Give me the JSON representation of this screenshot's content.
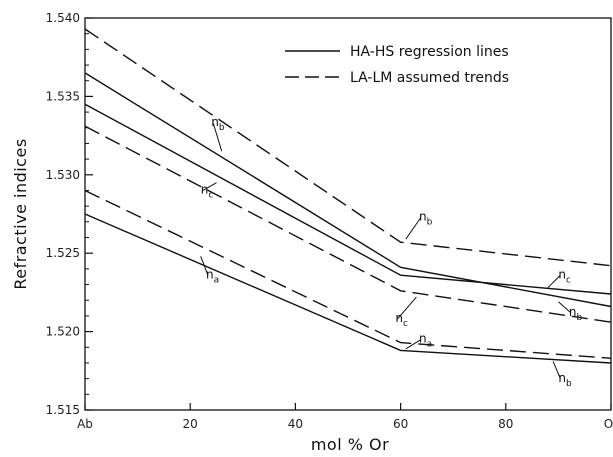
{
  "chart_data": {
    "type": "line",
    "title": "",
    "xlabel": "mol % Or",
    "ylabel": "Refractive indices",
    "xlim": [
      0,
      100
    ],
    "ylim": [
      1.515,
      1.54
    ],
    "x_ticks": [
      {
        "value": 0,
        "label": "Ab"
      },
      {
        "value": 20,
        "label": "20"
      },
      {
        "value": 40,
        "label": "40"
      },
      {
        "value": 60,
        "label": "60"
      },
      {
        "value": 80,
        "label": "80"
      },
      {
        "value": 100,
        "label": "Or"
      }
    ],
    "y_ticks": [
      {
        "value": 1.515,
        "label": "1.515"
      },
      {
        "value": 1.52,
        "label": "1.520"
      },
      {
        "value": 1.525,
        "label": "1.525"
      },
      {
        "value": 1.53,
        "label": "1.530"
      },
      {
        "value": 1.535,
        "label": "1.535"
      },
      {
        "value": 1.54,
        "label": "1.540"
      }
    ],
    "legend": {
      "position": "top-right",
      "entries": [
        {
          "label": "HA-HS regression lines",
          "style": "solid"
        },
        {
          "label": "LA-LM assumed trends",
          "style": "dashed"
        }
      ]
    },
    "series": [
      {
        "style": "solid",
        "points": [
          [
            0,
            1.5365
          ],
          [
            60,
            1.5241
          ],
          [
            100,
            1.5216
          ]
        ]
      },
      {
        "style": "solid",
        "points": [
          [
            0,
            1.5345
          ],
          [
            60,
            1.5236
          ],
          [
            100,
            1.5224
          ]
        ]
      },
      {
        "style": "solid",
        "points": [
          [
            0,
            1.5275
          ],
          [
            60,
            1.5188
          ],
          [
            100,
            1.518
          ]
        ]
      },
      {
        "style": "dashed",
        "points": [
          [
            0,
            1.5393
          ],
          [
            60,
            1.5257
          ],
          [
            100,
            1.5242
          ]
        ]
      },
      {
        "style": "dashed",
        "points": [
          [
            0,
            1.5331
          ],
          [
            60,
            1.5226
          ],
          [
            100,
            1.5206
          ]
        ]
      },
      {
        "style": "dashed",
        "points": [
          [
            0,
            1.529
          ],
          [
            60,
            1.5193
          ],
          [
            100,
            1.5183
          ]
        ]
      }
    ],
    "annotations": [
      {
        "base": "n",
        "sub": "b",
        "x": 24,
        "y": 1.5331,
        "lx": 26,
        "ly": 1.5315
      },
      {
        "base": "n",
        "sub": "c",
        "x": 22,
        "y": 1.5288,
        "lx": 25,
        "ly": 1.5295
      },
      {
        "base": "n",
        "sub": "a",
        "x": 23,
        "y": 1.5234,
        "lx": 22,
        "ly": 1.5248
      },
      {
        "base": "n",
        "sub": "b",
        "x": 63.5,
        "y": 1.5271,
        "lx": 61,
        "ly": 1.5259
      },
      {
        "base": "n",
        "sub": "c",
        "x": 59,
        "y": 1.5206,
        "lx": 63,
        "ly": 1.5222
      },
      {
        "base": "n",
        "sub": "a",
        "x": 63.5,
        "y": 1.5193,
        "lx": 61,
        "ly": 1.5189
      },
      {
        "base": "n",
        "sub": "c",
        "x": 90,
        "y": 1.5234,
        "lx": 88,
        "ly": 1.5228
      },
      {
        "base": "n",
        "sub": "b",
        "x": 92,
        "y": 1.521,
        "lx": 90,
        "ly": 1.5219
      },
      {
        "base": "n",
        "sub": "b",
        "x": 90,
        "y": 1.5168,
        "lx": 89,
        "ly": 1.5181
      }
    ]
  }
}
